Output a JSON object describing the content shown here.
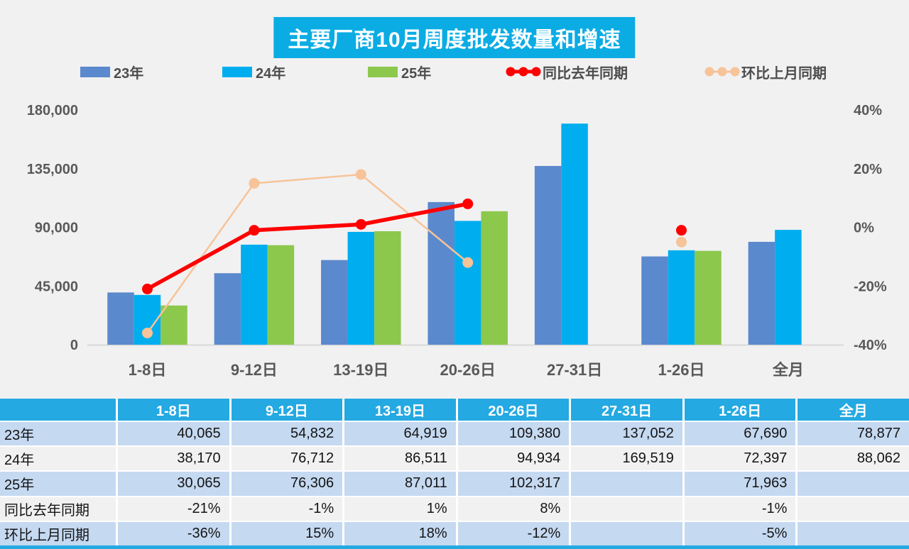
{
  "title": "主要厂商10月周度批发数量和增速",
  "legend": {
    "items": [
      {
        "label": "23年",
        "type": "bar",
        "color": "#5B89CD"
      },
      {
        "label": "24年",
        "type": "bar",
        "color": "#00AEEF"
      },
      {
        "label": "25年",
        "type": "bar",
        "color": "#8CC84C"
      },
      {
        "label": "同比去年同期",
        "type": "line",
        "color": "#FE0000"
      },
      {
        "label": "环比上月同期",
        "type": "line",
        "color": "#F7C398"
      }
    ]
  },
  "chart_data": {
    "type": "bar+line combo",
    "title": "主要厂商10月周度批发数量和增速",
    "categories": [
      "1-8日",
      "9-12日",
      "13-19日",
      "20-26日",
      "27-31日",
      "1-26日",
      "全月"
    ],
    "series": [
      {
        "name": "23年",
        "type": "bar",
        "axis": "left",
        "color": "#5B89CD",
        "values": [
          40065,
          54832,
          64919,
          109380,
          137052,
          67690,
          78877
        ]
      },
      {
        "name": "24年",
        "type": "bar",
        "axis": "left",
        "color": "#00AEEF",
        "values": [
          38170,
          76712,
          86511,
          94934,
          169519,
          72397,
          88062
        ]
      },
      {
        "name": "25年",
        "type": "bar",
        "axis": "left",
        "color": "#8CC84C",
        "values": [
          30065,
          76306,
          87011,
          102317,
          null,
          71963,
          null
        ]
      },
      {
        "name": "同比去年同期",
        "type": "line",
        "axis": "right",
        "color": "#FE0000",
        "values": [
          -21,
          -1,
          1,
          8,
          null,
          -1,
          null
        ]
      },
      {
        "name": "环比上月同期",
        "type": "line",
        "axis": "right",
        "color": "#F7C398",
        "values": [
          -36,
          15,
          18,
          -12,
          null,
          -5,
          null
        ]
      }
    ],
    "left_axis": {
      "min": 0,
      "max": 180000,
      "ticks": [
        "0",
        "45,000",
        "90,000",
        "135,000",
        "180,000"
      ]
    },
    "right_axis": {
      "min": -40,
      "max": 40,
      "ticks": [
        "-40%",
        "-20%",
        "0%",
        "20%",
        "40%"
      ]
    },
    "grid": "off",
    "legend_position": "top"
  },
  "table": {
    "header": [
      "",
      "1-8日",
      "9-12日",
      "13-19日",
      "20-26日",
      "27-31日",
      "1-26日",
      "全月"
    ],
    "rows": [
      {
        "label": "23年",
        "shade": true,
        "cells": [
          "40,065",
          "54,832",
          "64,919",
          "109,380",
          "137,052",
          "67,690",
          "78,877"
        ]
      },
      {
        "label": "24年",
        "shade": false,
        "cells": [
          "38,170",
          "76,712",
          "86,511",
          "94,934",
          "169,519",
          "72,397",
          "88,062"
        ]
      },
      {
        "label": "25年",
        "shade": true,
        "cells": [
          "30,065",
          "76,306",
          "87,011",
          "102,317",
          "",
          "71,963",
          ""
        ]
      },
      {
        "label": "同比去年同期",
        "shade": false,
        "cells": [
          "-21%",
          "-1%",
          "1%",
          "8%",
          "",
          "-1%",
          ""
        ]
      },
      {
        "label": "环比上月同期",
        "shade": true,
        "cells": [
          "-36%",
          "15%",
          "18%",
          "-12%",
          "",
          "-5%",
          ""
        ]
      }
    ]
  },
  "colors": {
    "page_background": "#F1F1F2",
    "title_background": "#0BACE4",
    "table_header": "#24A9E2",
    "table_row_shaded": "#C5D9F1",
    "table_row_plain": "#F1F1F2",
    "bar_23": "#5B89CD",
    "bar_24": "#00AEEF",
    "bar_25": "#8CC84C",
    "line_yoy": "#FE0000",
    "line_mom": "#F7C398",
    "axis_text": "#595959"
  }
}
